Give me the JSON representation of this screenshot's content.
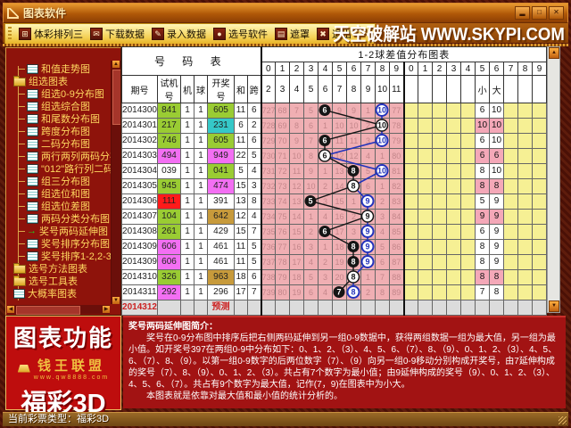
{
  "window": {
    "title": "图表软件",
    "controls": [
      {
        "name": "minimize"
      },
      {
        "name": "maximize"
      },
      {
        "name": "close"
      }
    ]
  },
  "toolbar": {
    "buttons": [
      {
        "label": "体彩排列三",
        "icon": "grid-icon"
      },
      {
        "label": "下载数据",
        "icon": "download-icon"
      },
      {
        "label": "录入数据",
        "icon": "edit-icon"
      },
      {
        "label": "选号软件",
        "icon": "ball-icon"
      },
      {
        "label": "遮罩",
        "icon": "mask-icon"
      },
      {
        "label": "退出",
        "icon": "exit-icon"
      }
    ],
    "banner": "天空破解站 WWW.SKYPI.COM"
  },
  "sidebar": {
    "items": [
      {
        "label": "和值走势图",
        "icon": "sheet",
        "indent": 2
      },
      {
        "label": "组选图表",
        "icon": "folder",
        "indent": 1
      },
      {
        "label": "组选0-9分布图",
        "icon": "sheet",
        "indent": 2
      },
      {
        "label": "组选综合图",
        "icon": "sheet",
        "indent": 2
      },
      {
        "label": "和尾数分布图",
        "icon": "sheet",
        "indent": 2
      },
      {
        "label": "跨度分布图",
        "icon": "sheet",
        "indent": 2
      },
      {
        "label": "二码分布图",
        "icon": "sheet",
        "indent": 2
      },
      {
        "label": "两行两列两码分布图",
        "icon": "sheet",
        "indent": 2
      },
      {
        "label": "\"012\"路行列二码分析",
        "icon": "sheet",
        "indent": 2
      },
      {
        "label": "组三分布图",
        "icon": "sheet",
        "indent": 2
      },
      {
        "label": "组选位和图",
        "icon": "sheet",
        "indent": 2
      },
      {
        "label": "组选位差图",
        "icon": "sheet",
        "indent": 2
      },
      {
        "label": "两码分类分布图",
        "icon": "sheet",
        "indent": 2
      },
      {
        "label": "奖号两码延伸图",
        "icon": "arrow",
        "indent": 2,
        "selected": true
      },
      {
        "label": "奖号排序分布图",
        "icon": "sheet",
        "indent": 2
      },
      {
        "label": "奖号排序1-2,2-3球图",
        "icon": "sheet",
        "indent": 2
      },
      {
        "label": "选号方法图表",
        "icon": "folder",
        "indent": 1
      },
      {
        "label": "选号工具表",
        "icon": "folder",
        "indent": 1
      },
      {
        "label": "大概率图表",
        "icon": "sheet",
        "indent": 1
      }
    ]
  },
  "table": {
    "title_left": "号 码 表",
    "title_right": "1-2球差值分布图表",
    "digit_headers": [
      "0",
      "1",
      "2",
      "3",
      "4",
      "5",
      "6",
      "7",
      "8",
      "9",
      "0",
      "1",
      "2",
      "3",
      "4",
      "5",
      "6",
      "7",
      "8",
      "9"
    ],
    "col_headers": [
      "期号",
      "试机号",
      "机",
      "球",
      "开奖号",
      "和",
      "跨"
    ],
    "diff_headers": [
      "2",
      "3",
      "4",
      "5",
      "6",
      "7",
      "8",
      "9",
      "10",
      "11"
    ],
    "right_headers": [
      "",
      "",
      "",
      "",
      "",
      "小",
      "大",
      "",
      "",
      ""
    ],
    "rows": [
      {
        "period": "2014300",
        "test": "841",
        "test_color": "green",
        "machine": "1",
        "ball": "1",
        "win": "605",
        "win_color": "green",
        "sum": "11",
        "span": "6",
        "pink": [
          "727",
          "68",
          "7",
          "5",
          "",
          "9",
          "9",
          "1",
          "",
          "77"
        ],
        "min": 6,
        "max": 10,
        "small": "6",
        "big": "10"
      },
      {
        "period": "2014301",
        "test": "217",
        "test_color": "green",
        "machine": "1",
        "ball": "1",
        "win": "231",
        "win_color": "cyan",
        "sum": "6",
        "span": "2",
        "pink": [
          "728",
          "69",
          "8",
          "6",
          "1",
          "10",
          "10",
          "2",
          "",
          "78"
        ],
        "min": 10,
        "max": 10,
        "small": "10",
        "big": "10"
      },
      {
        "period": "2014302",
        "test": "746",
        "test_color": "green",
        "machine": "1",
        "ball": "1",
        "win": "605",
        "win_color": "green",
        "sum": "11",
        "span": "6",
        "pink": [
          "729",
          "70",
          "9",
          "7",
          "",
          "11",
          "11",
          "3",
          "",
          "79"
        ],
        "min": 6,
        "max": 10,
        "small": "6",
        "big": "10"
      },
      {
        "period": "2014303",
        "test": "494",
        "test_color": "magenta",
        "machine": "1",
        "ball": "1",
        "win": "949",
        "win_color": "magenta",
        "sum": "22",
        "span": "5",
        "pink": [
          "730",
          "71",
          "10",
          "8",
          "",
          "12",
          "12",
          "4",
          "1",
          "80"
        ],
        "min": 6,
        "max": 6,
        "small": "6",
        "big": "6"
      },
      {
        "period": "2014304",
        "test": "039",
        "test_color": "white",
        "machine": "1",
        "ball": "1",
        "win": "041",
        "win_color": "green",
        "sum": "5",
        "span": "4",
        "pink": [
          "731",
          "72",
          "11",
          "9",
          "1",
          "13",
          "",
          "5",
          "",
          "81"
        ],
        "min": 8,
        "max": 10,
        "small": "8",
        "big": "10"
      },
      {
        "period": "2014305",
        "test": "945",
        "test_color": "green",
        "machine": "1",
        "ball": "1",
        "win": "474",
        "win_color": "magenta",
        "sum": "15",
        "span": "3",
        "pink": [
          "732",
          "73",
          "12",
          "10",
          "2",
          "14",
          "",
          "6",
          "1",
          "82"
        ],
        "min": 8,
        "max": 8,
        "small": "8",
        "big": "8"
      },
      {
        "period": "2014306",
        "test": "111",
        "test_color": "red",
        "machine": "1",
        "ball": "1",
        "win": "391",
        "win_color": "white",
        "sum": "13",
        "span": "8",
        "pink": [
          "733",
          "74",
          "13",
          "",
          "3",
          "15",
          "1",
          "",
          "2",
          "83"
        ],
        "min": 5,
        "max": 9,
        "small": "5",
        "big": "9"
      },
      {
        "period": "2014307",
        "test": "104",
        "test_color": "green",
        "machine": "1",
        "ball": "1",
        "win": "642",
        "win_color": "olive",
        "sum": "12",
        "span": "4",
        "pink": [
          "734",
          "75",
          "14",
          "1",
          "4",
          "16",
          "2",
          "",
          "3",
          "84"
        ],
        "min": 9,
        "max": 9,
        "small": "9",
        "big": "9"
      },
      {
        "period": "2014308",
        "test": "261",
        "test_color": "green",
        "machine": "1",
        "ball": "1",
        "win": "429",
        "win_color": "white",
        "sum": "15",
        "span": "7",
        "pink": [
          "735",
          "76",
          "15",
          "2",
          "",
          "17",
          "3",
          "",
          "4",
          "85"
        ],
        "min": 6,
        "max": 9,
        "small": "6",
        "big": "9"
      },
      {
        "period": "2014309",
        "test": "606",
        "test_color": "magenta",
        "machine": "1",
        "ball": "1",
        "win": "461",
        "win_color": "white",
        "sum": "11",
        "span": "5",
        "pink": [
          "736",
          "77",
          "16",
          "3",
          "1",
          "18",
          "",
          "",
          "5",
          "86"
        ],
        "min": 8,
        "max": 9,
        "small": "8",
        "big": "9"
      },
      {
        "period": "2014309",
        "test": "606",
        "test_color": "magenta",
        "machine": "1",
        "ball": "1",
        "win": "461",
        "win_color": "white",
        "sum": "11",
        "span": "5",
        "pink": [
          "737",
          "78",
          "17",
          "4",
          "2",
          "19",
          "",
          "",
          "6",
          "87"
        ],
        "min": 8,
        "max": 9,
        "small": "8",
        "big": "9"
      },
      {
        "period": "2014310",
        "test": "326",
        "test_color": "green",
        "machine": "1",
        "ball": "1",
        "win": "963",
        "win_color": "olive",
        "sum": "18",
        "span": "6",
        "pink": [
          "738",
          "79",
          "18",
          "5",
          "3",
          "20",
          "",
          "1",
          "7",
          "88"
        ],
        "min": 8,
        "max": 8,
        "small": "8",
        "big": "8"
      },
      {
        "period": "2014311",
        "test": "292",
        "test_color": "magenta",
        "machine": "1",
        "ball": "1",
        "win": "296",
        "win_color": "white",
        "sum": "17",
        "span": "7",
        "pink": [
          "739",
          "80",
          "19",
          "6",
          "4",
          "",
          "",
          "2",
          "8",
          "89"
        ],
        "min": 7,
        "max": 8,
        "small": "7",
        "big": "8"
      },
      {
        "period": "2014312",
        "prediction": true,
        "win": "预测"
      }
    ]
  },
  "description": {
    "title": "奖号两码延伸图简介：",
    "p1": "奖号在0-9分布图中排序后把右侧两码延伸到另一组0-9数据中，获得两组数据一组为最大值，另一组为最小值。如开奖号397在两组0-9中分布如下：0、1、2、（3）、4、5、6、（7）、8、（9）、0、1、2、（3）、4、5、6、（7）、8、（9）。以第一组0-9数字的后两位数字（7）、（9）向另一组0-9移动分别构成开奖号，由7延伸构成的奖号（7）、8、（9）、0、1、2、（3）。共占有7个数字为最小值；由9延伸构成的奖号（9）、0、1、2、（3）、4、5、6、（7）。共占有9个数字为最大值，记作(7，9)在图表中为小大。",
    "p2": "本图表就是依靠对最大值和最小值的统计分析的。"
  },
  "branding": {
    "line1": "图表功能",
    "line2": "钱王联盟",
    "line2_sub": "www.qw8888.com",
    "line3": "福彩3D"
  },
  "statusbar": {
    "text": "当前彩票类型：福彩3D"
  },
  "colors": {
    "accent_gold": "#ffd860",
    "panel_red": "#8e130b",
    "pink_zone": "#f0afb3",
    "yellow_zone": "#f6f094",
    "min_circle": "#151515",
    "max_circle": "#2233bb"
  }
}
